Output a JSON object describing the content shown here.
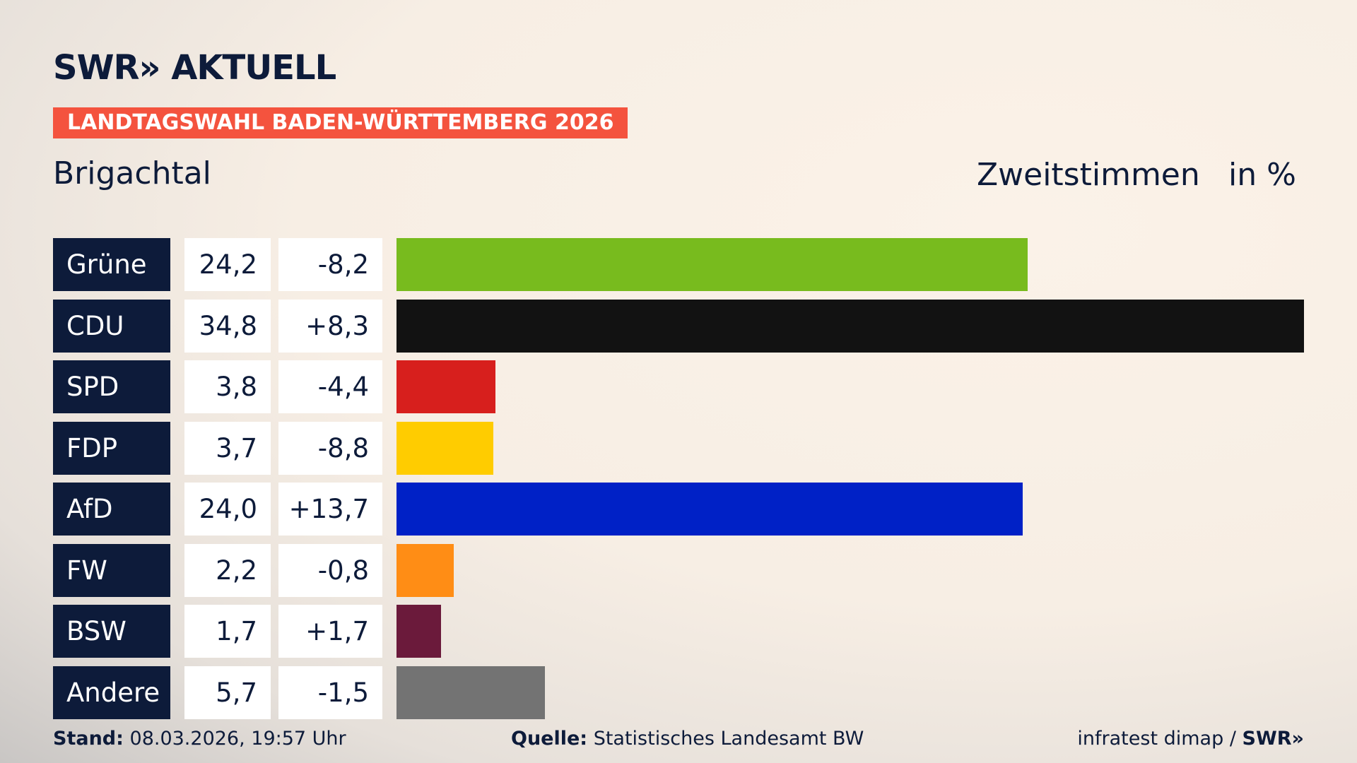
{
  "header": {
    "logo": "SWR» AKTUELL",
    "banner": "LANDTAGSWAHL BADEN-WÜRTTEMBERG 2026"
  },
  "chart_data": {
    "type": "bar",
    "title": "Brigachtal",
    "subtitle": "Zweitstimmen",
    "unit": "in %",
    "categories": [
      "Grüne",
      "CDU",
      "SPD",
      "FDP",
      "AfD",
      "FW",
      "BSW",
      "Andere"
    ],
    "values": [
      24.2,
      34.8,
      3.8,
      3.7,
      24.0,
      2.2,
      1.7,
      5.7
    ],
    "value_labels": [
      "24,2",
      "34,8",
      "3,8",
      "3,7",
      "24,0",
      "2,2",
      "1,7",
      "5,7"
    ],
    "changes": [
      "-8,2",
      "+8,3",
      "-4,4",
      "-8,8",
      "+13,7",
      "-0,8",
      "+1,7",
      "-1,5"
    ],
    "colors": [
      "#78bb1e",
      "#121212",
      "#d71f1d",
      "#ffcc00",
      "#0021c6",
      "#ff8d15",
      "#6b1a3b",
      "#737373"
    ]
  },
  "footer": {
    "stand_label": "Stand:",
    "stand": "08.03.2026, 19:57 Uhr",
    "source_label": "Quelle:",
    "source": "Statistisches Landesamt BW",
    "credit": "infratest dimap /",
    "credit_logo": "SWR»"
  }
}
